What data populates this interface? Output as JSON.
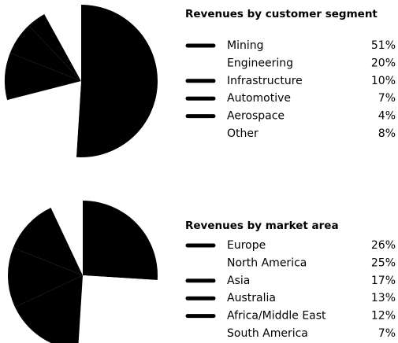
{
  "chart_data": [
    {
      "type": "pie",
      "title": "Revenues by customer segment",
      "categories": [
        "Mining",
        "Engineering",
        "Infrastructure",
        "Automotive",
        "Aerospace",
        "Other"
      ],
      "values": [
        51,
        20,
        10,
        7,
        4,
        8
      ],
      "value_labels": [
        "51%",
        "20%",
        "10%",
        "7%",
        "4%",
        "8%"
      ],
      "colors": [
        "#000000",
        "#ffffff",
        "#000000",
        "#000000",
        "#000000",
        "#ffffff"
      ]
    },
    {
      "type": "pie",
      "title": "Revenues by market area",
      "categories": [
        "Europe",
        "North America",
        "Asia",
        "Australia",
        "Africa/Middle East",
        "South America"
      ],
      "values": [
        26,
        25,
        17,
        13,
        12,
        7
      ],
      "value_labels": [
        "26%",
        "25%",
        "17%",
        "13%",
        "12%",
        "7%"
      ],
      "colors": [
        "#000000",
        "#ffffff",
        "#000000",
        "#000000",
        "#000000",
        "#ffffff"
      ]
    }
  ]
}
